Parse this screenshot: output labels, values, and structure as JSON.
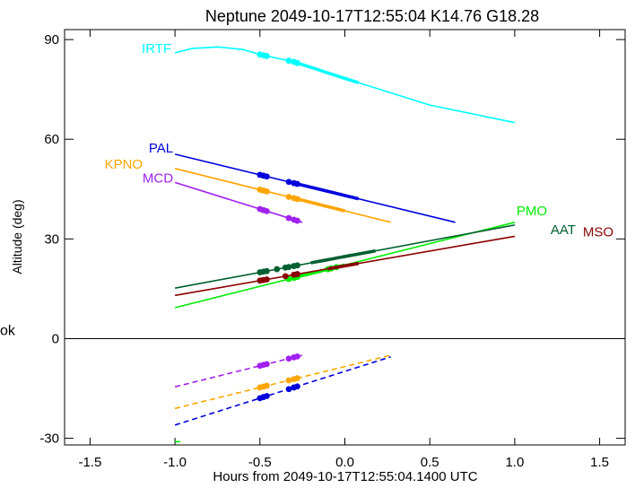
{
  "chart_data": {
    "type": "line",
    "title": "Neptune 2049-10-17T12:55:04  K14.76  G18.28",
    "xlabel": "Hours from 2049-10-17T12:55:04.1400 UTC",
    "ylabel": "Altitude (deg)",
    "xlim": [
      -1.65,
      1.65
    ],
    "ylim": [
      -32,
      93
    ],
    "x_ticks": [
      -1.5,
      -1.0,
      -0.5,
      0.0,
      0.5,
      1.0,
      1.5
    ],
    "x_tick_labels": [
      "-1.5",
      "-1.0",
      "-0.5",
      "0.0",
      "0.5",
      "1.0",
      "1.5"
    ],
    "y_ticks": [
      -30,
      0,
      30,
      60,
      90
    ],
    "y_tick_labels": [
      "-30",
      "0",
      "30",
      "60",
      "90"
    ],
    "zero_line_label": "ok",
    "grid": false,
    "series": [
      {
        "name": "IRTF",
        "color": "#00ffff",
        "points": [
          [
            -1.0,
            86.0
          ],
          [
            -0.9,
            87.3
          ],
          [
            -0.75,
            87.8
          ],
          [
            -0.6,
            87.0
          ],
          [
            -0.5,
            85.5
          ],
          [
            -0.3,
            83.3
          ],
          [
            0.0,
            78.3
          ],
          [
            0.5,
            70.3
          ],
          [
            1.0,
            65.0
          ]
        ],
        "thick": [
          [
            -0.3,
            0.08
          ]
        ],
        "dots": [
          -0.5,
          -0.48,
          -0.46,
          -0.33,
          -0.3,
          -0.28
        ]
      },
      {
        "name": "PAL",
        "color": "#0000dd",
        "points": [
          [
            -1.0,
            55.5
          ],
          [
            0.65,
            35.0
          ]
        ],
        "thick": [
          [
            -0.3,
            0.08
          ]
        ],
        "dots": [
          -0.5,
          -0.48,
          -0.46,
          -0.33,
          -0.3,
          -0.28
        ],
        "below": {
          "points": [
            [
              -1.0,
              -26.0
            ],
            [
              0.27,
              -5.5
            ]
          ],
          "dots": [
            -0.5,
            -0.48,
            -0.46,
            -0.33,
            -0.3,
            -0.28
          ]
        }
      },
      {
        "name": "KPNO",
        "color": "#ffa500",
        "points": [
          [
            -1.0,
            51.2
          ],
          [
            0.27,
            35.0
          ]
        ],
        "thick": [
          [
            -0.3,
            0.0
          ]
        ],
        "dots": [
          -0.5,
          -0.48,
          -0.46,
          -0.33,
          -0.3,
          -0.28
        ],
        "below": {
          "points": [
            [
              -1.0,
              -21.0
            ],
            [
              0.27,
              -5.0
            ]
          ],
          "dots": [
            -0.5,
            -0.48,
            -0.46,
            -0.33,
            -0.3,
            -0.28
          ]
        }
      },
      {
        "name": "MCD",
        "color": "#a020f0",
        "points": [
          [
            -1.0,
            47.0
          ],
          [
            -0.25,
            35.0
          ]
        ],
        "thick": [],
        "dots": [
          -0.5,
          -0.48,
          -0.46,
          -0.33,
          -0.3,
          -0.28
        ],
        "below": {
          "points": [
            [
              -1.0,
              -14.5
            ],
            [
              -0.25,
              -5.0
            ]
          ],
          "dots": [
            -0.5,
            -0.48,
            -0.46,
            -0.33,
            -0.3,
            -0.28
          ]
        }
      },
      {
        "name": "PMO",
        "color": "#00ee00",
        "points": [
          [
            -1.0,
            9.3
          ],
          [
            1.0,
            35.0
          ]
        ],
        "thick": [
          [
            -0.3,
            0.0
          ]
        ],
        "dots": [
          -0.33,
          -0.3,
          -0.28,
          -0.1,
          -0.08,
          -0.05
        ],
        "below": {
          "points": [
            [
              -1.0,
              -31.0
            ],
            [
              -0.95,
              -31.0
            ]
          ],
          "dots": []
        }
      },
      {
        "name": "AAT",
        "color": "#006030",
        "points": [
          [
            -1.0,
            15.2
          ],
          [
            1.0,
            34.2
          ]
        ],
        "thick": [
          [
            -0.2,
            0.18
          ]
        ],
        "dots": [
          -0.5,
          -0.48,
          -0.46,
          -0.33,
          -0.3,
          -0.28,
          -0.4,
          -0.35
        ]
      },
      {
        "name": "MSO",
        "color": "#8b0000",
        "points": [
          [
            -1.0,
            13.0
          ],
          [
            1.0,
            30.8
          ]
        ],
        "thick": [
          [
            -0.1,
            0.08
          ]
        ],
        "dots": [
          -0.5,
          -0.48,
          -0.46,
          -0.35,
          -0.3,
          -0.28
        ]
      }
    ],
    "labels": [
      {
        "text": "IRTF",
        "color": "#00ffff"
      },
      {
        "text": "PAL",
        "color": "#0000dd"
      },
      {
        "text": "KPNO",
        "color": "#ffa500"
      },
      {
        "text": "MCD",
        "color": "#a020f0"
      },
      {
        "text": "PMO",
        "color": "#00ee00"
      },
      {
        "text": "AAT",
        "color": "#006030"
      },
      {
        "text": "MSO",
        "color": "#8b0000"
      }
    ]
  }
}
